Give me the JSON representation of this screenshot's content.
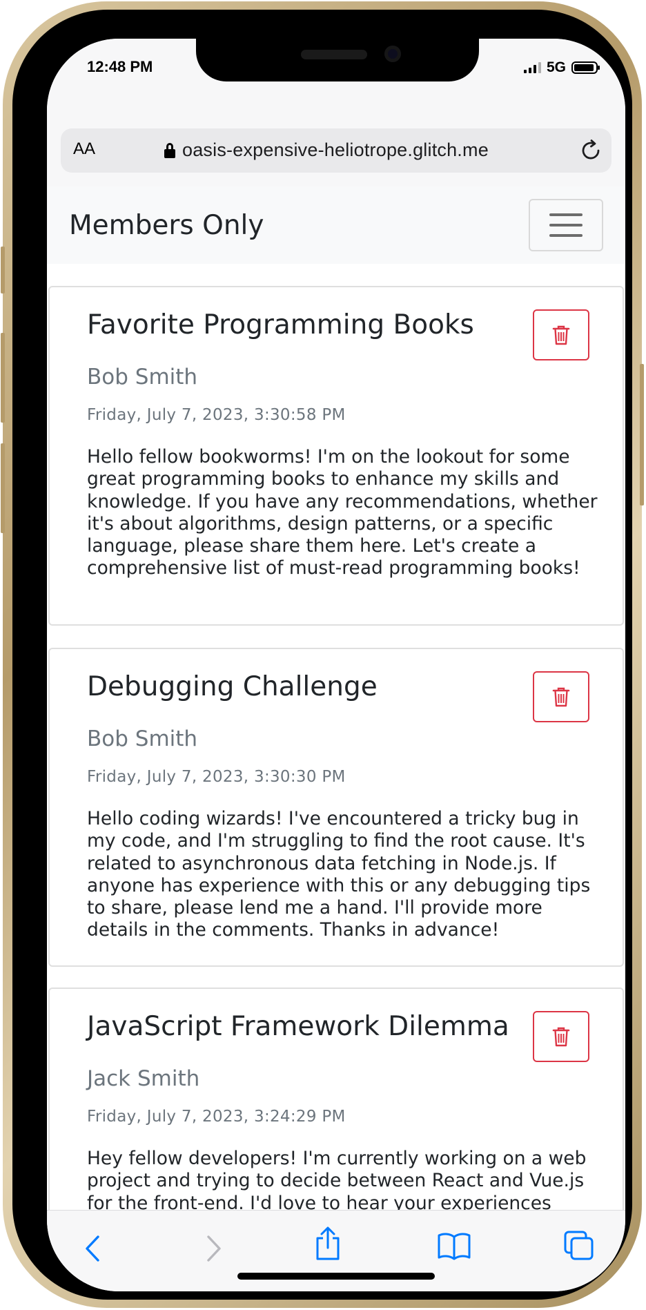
{
  "status_bar": {
    "time": "12:48 PM",
    "network": "5G"
  },
  "browser": {
    "text_size_label": "AA",
    "url": "oasis-expensive-heliotrope.glitch.me",
    "icons": [
      "lock-icon",
      "reload-icon",
      "back-icon",
      "forward-icon",
      "share-icon",
      "bookmarks-icon",
      "tabs-icon"
    ],
    "accent_color": "#007aff",
    "disabled_color": "#b8b8bd"
  },
  "navbar": {
    "brand": "Members Only"
  },
  "posts": [
    {
      "title": "Favorite Programming Books",
      "author": "Bob Smith",
      "date": "Friday, July 7, 2023, 3:30:58 PM",
      "body": "Hello fellow bookworms! I'm on the lookout for some great programming books to enhance my skills and knowledge. If you have any recommendations, whether it's about algorithms, design patterns, or a specific language, please share them here. Let's create a comprehensive list of must-read programming books!"
    },
    {
      "title": "Debugging Challenge",
      "author": "Bob Smith",
      "date": "Friday, July 7, 2023, 3:30:30 PM",
      "body": "Hello coding wizards! I've encountered a tricky bug in my code, and I'm struggling to find the root cause. It's related to asynchronous data fetching in Node.js. If anyone has experience with this or any debugging tips to share, please lend me a hand. I'll provide more details in the comments. Thanks in advance!"
    },
    {
      "title": "JavaScript Framework Dilemma",
      "author": "Jack Smith",
      "date": "Friday, July 7, 2023, 3:24:29 PM",
      "body": "Hey fellow developers! I'm currently working on a web project and trying to decide between React and Vue.js for the front-end. I'd love to hear your experiences"
    }
  ],
  "colors": {
    "danger": "#dc3545",
    "muted": "#6c757d",
    "text": "#212529"
  }
}
